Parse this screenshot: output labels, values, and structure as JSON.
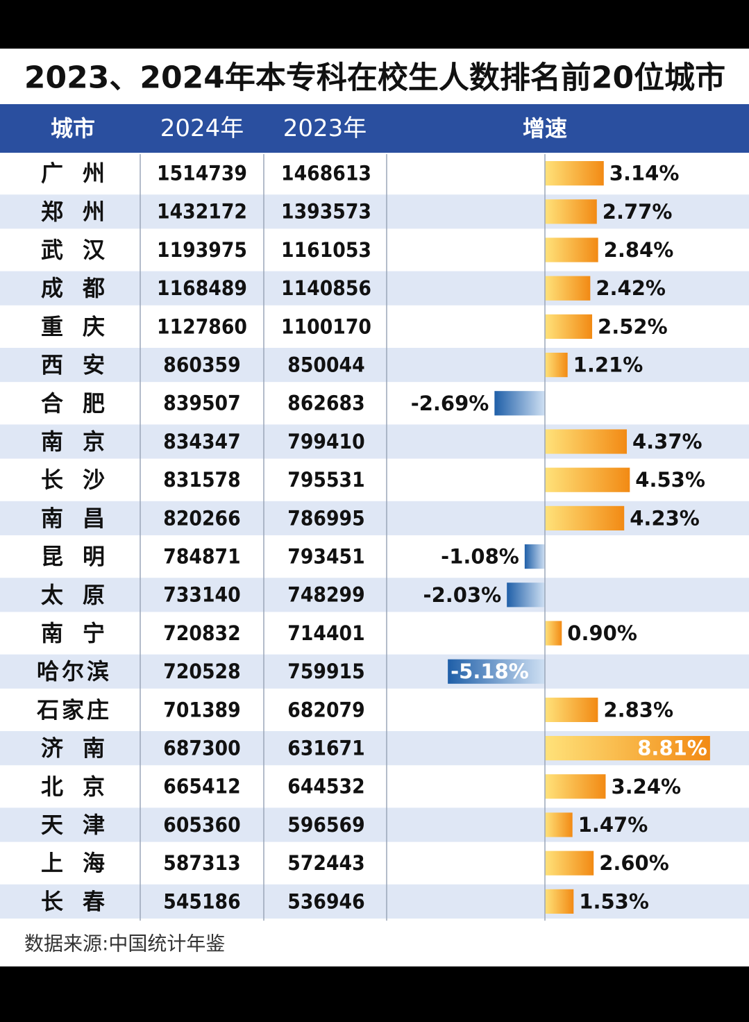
{
  "chart_data": {
    "type": "table-bar",
    "title": "2023、2024年本专科在校生人数排名前20位城市",
    "category_header": "城市",
    "categories": [
      "广州",
      "郑州",
      "武汉",
      "成都",
      "重庆",
      "西安",
      "合肥",
      "南京",
      "长沙",
      "南昌",
      "昆明",
      "太原",
      "南宁",
      "哈尔滨",
      "石家庄",
      "济南",
      "北京",
      "天津",
      "上海",
      "长春"
    ],
    "series": [
      {
        "name": "2024年",
        "values": [
          1514739,
          1432172,
          1193975,
          1168489,
          1127860,
          860359,
          839507,
          834347,
          831578,
          820266,
          784871,
          733140,
          720832,
          720528,
          701389,
          687300,
          665412,
          605360,
          587313,
          545186
        ]
      },
      {
        "name": "2023年",
        "values": [
          1468613,
          1393573,
          1161053,
          1140856,
          1100170,
          850044,
          862683,
          799410,
          795531,
          786995,
          793451,
          748299,
          714401,
          759915,
          682079,
          631671,
          644532,
          596569,
          572443,
          536946
        ]
      }
    ],
    "growth": {
      "name": "增速",
      "values": [
        3.14,
        2.77,
        2.84,
        2.42,
        2.52,
        1.21,
        -2.69,
        4.37,
        4.53,
        4.23,
        -1.08,
        -2.03,
        0.9,
        -5.18,
        2.83,
        8.81,
        3.24,
        1.47,
        2.6,
        1.53
      ],
      "value_labels": [
        "3.14%",
        "2.77%",
        "2.84%",
        "2.42%",
        "2.52%",
        "1.21%",
        "-2.69%",
        "4.37%",
        "4.53%",
        "4.23%",
        "-1.08%",
        "-2.03%",
        "0.90%",
        "-5.18%",
        "2.83%",
        "8.81%",
        "3.24%",
        "1.47%",
        "2.60%",
        "1.53%"
      ],
      "positive_color": "#f29a1e",
      "negative_color": "#1f5fa8"
    },
    "source": "数据来源:中国统计年鉴"
  }
}
